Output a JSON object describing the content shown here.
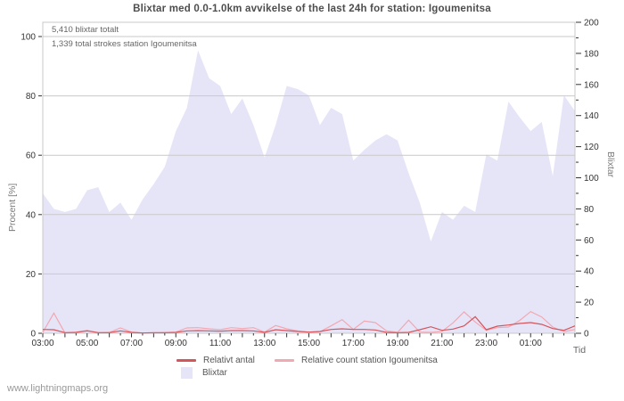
{
  "page": {
    "title": "Blixtar med 0.0-1.0km avvikelse of the last 24h for station: Igoumenitsa",
    "watermark": "www.lightningmaps.org"
  },
  "annotations": {
    "total": "5,410 blixtar totalt",
    "station": "1,339 total strokes station Igoumenitsa"
  },
  "axes": {
    "left_label": "Procent  [%]",
    "right_label": "Blixtar",
    "x_label": "Tid",
    "left_ticks": [
      0,
      20,
      40,
      60,
      80,
      100
    ],
    "right_tick_step_minor": 10,
    "right_tick_step_major": 20,
    "right_max": 200,
    "x_tick_labels": [
      "03:00",
      "05:00",
      "07:00",
      "09:00",
      "11:00",
      "13:00",
      "15:00",
      "17:00",
      "19:00",
      "21:00",
      "23:00",
      "01:00"
    ]
  },
  "legend": {
    "relativt": "Relativt antal",
    "station": "Relative count station Igoumenitsa",
    "blixtar": "Blixtar"
  },
  "colors": {
    "background": "#ffffff",
    "area_fill": "#e6e5f8",
    "line_total": "#d4555c",
    "line_station": "#f2a8b2",
    "grid": "#c9c9c9",
    "frame": "#c9c9c9",
    "tick": "#333333",
    "tick_label": "#333333",
    "title_text": "#4d4d4d",
    "annotation_text": "#666666",
    "axis_title": "#7a7a7a",
    "watermark": "#9a9a9a"
  },
  "chart_data": {
    "type": "area",
    "title": "Blixtar med 0.0-1.0km avvikelse of the last 24h for station: Igoumenitsa",
    "x": [
      "03:00",
      "03:30",
      "04:00",
      "04:30",
      "05:00",
      "05:30",
      "06:00",
      "06:30",
      "07:00",
      "07:30",
      "08:00",
      "08:30",
      "09:00",
      "09:30",
      "10:00",
      "10:30",
      "11:00",
      "11:30",
      "12:00",
      "12:30",
      "13:00",
      "13:30",
      "14:00",
      "14:30",
      "15:00",
      "15:30",
      "16:00",
      "16:30",
      "17:00",
      "17:30",
      "18:00",
      "18:30",
      "19:00",
      "19:30",
      "20:00",
      "20:30",
      "21:00",
      "21:30",
      "22:00",
      "22:30",
      "23:00",
      "23:30",
      "00:00",
      "00:30",
      "01:00",
      "01:30",
      "02:00",
      "02:30",
      "02:55"
    ],
    "series": [
      {
        "name": "Blixtar",
        "type": "area",
        "axis": "right",
        "values": [
          90,
          80,
          78,
          80,
          92,
          94,
          78,
          84,
          73,
          86,
          96,
          107,
          130,
          145,
          182,
          164,
          159,
          141,
          151,
          134,
          113,
          134,
          159,
          157,
          153,
          134,
          145,
          141,
          111,
          118,
          124,
          128,
          124,
          103,
          84,
          59,
          78,
          73,
          82,
          78,
          115,
          111,
          149,
          139,
          130,
          136,
          101,
          153,
          143
        ]
      },
      {
        "name": "Relativt antal",
        "type": "line",
        "axis": "left",
        "values": [
          1.3,
          1.2,
          0.2,
          0.3,
          0.8,
          0.2,
          0.2,
          0.8,
          0.3,
          0.1,
          0.2,
          0.2,
          0.3,
          0.8,
          0.9,
          0.8,
          0.7,
          0.9,
          0.9,
          0.8,
          0.3,
          1.2,
          0.9,
          0.6,
          0.4,
          0.6,
          1.3,
          1.5,
          1.3,
          1.3,
          1.1,
          0.3,
          0.2,
          0.3,
          1.2,
          2.2,
          1.0,
          1.4,
          2.5,
          5.6,
          1.2,
          2.4,
          2.8,
          3.3,
          3.6,
          3.0,
          1.6,
          1.0,
          2.5
        ]
      },
      {
        "name": "Relative count station Igoumenitsa",
        "type": "line",
        "axis": "left",
        "values": [
          0.3,
          6.8,
          0.1,
          0.4,
          1.0,
          0.2,
          0.3,
          1.8,
          0.4,
          0.1,
          0.1,
          0.2,
          0.4,
          1.8,
          1.9,
          1.5,
          1.2,
          1.9,
          1.6,
          1.9,
          0.4,
          2.6,
          1.5,
          0.8,
          0.3,
          0.5,
          2.5,
          4.6,
          1.3,
          4.1,
          3.6,
          0.8,
          0.3,
          4.4,
          0.4,
          0.3,
          0.6,
          3.5,
          7.2,
          3.8,
          1.0,
          1.9,
          2.1,
          4.3,
          7.3,
          5.5,
          2.1,
          0.5,
          1.3
        ]
      }
    ],
    "left_axis": {
      "label": "Procent [%]",
      "range": [
        0,
        100
      ],
      "grid": true
    },
    "right_axis": {
      "label": "Blixtar",
      "range": [
        0,
        200
      ]
    },
    "x_axis": {
      "label": "Tid",
      "tick_labels": [
        "03:00",
        "05:00",
        "07:00",
        "09:00",
        "11:00",
        "13:00",
        "15:00",
        "17:00",
        "19:00",
        "21:00",
        "23:00",
        "01:00"
      ]
    },
    "annotations": [
      "5,410 blixtar totalt",
      "1,339 total strokes station Igoumenitsa"
    ],
    "legend_position": "bottom"
  }
}
